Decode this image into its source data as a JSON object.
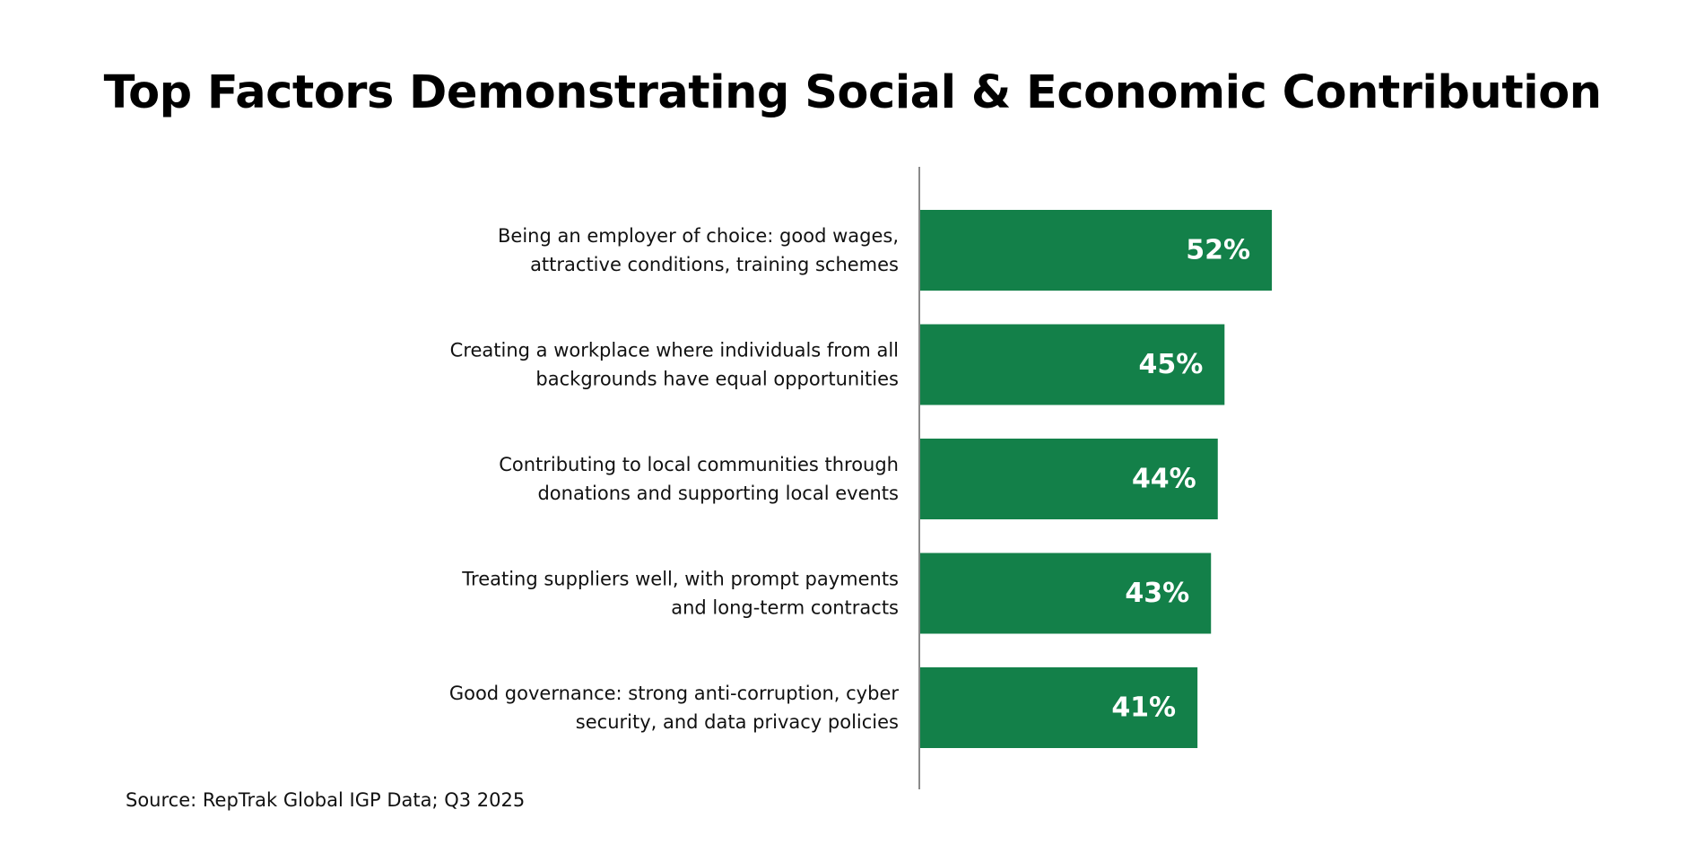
{
  "chart_data": {
    "type": "bar",
    "orientation": "horizontal",
    "title": "Top Factors Demonstrating Social & Economic Contribution",
    "categories": [
      [
        "Being an employer of choice: good wages,",
        "attractive conditions, training schemes"
      ],
      [
        "Creating a workplace where individuals from all",
        "backgrounds have equal opportunities"
      ],
      [
        "Contributing to local communities through",
        "donations and supporting local events"
      ],
      [
        "Treating suppliers well, with prompt payments",
        "and long-term contracts"
      ],
      [
        "Good governance: strong anti-corruption, cyber",
        "security, and data privacy policies"
      ]
    ],
    "values": [
      52,
      45,
      44,
      43,
      41
    ],
    "value_labels": [
      "52%",
      "45%",
      "44%",
      "43%",
      "41%"
    ],
    "xlim": [
      0,
      100
    ],
    "grid": false,
    "legend": "none",
    "bar_color": "#138049",
    "axis_color": "#8a8a8a"
  },
  "source": "Source: RepTrak Global IGP Data; Q3 2025"
}
